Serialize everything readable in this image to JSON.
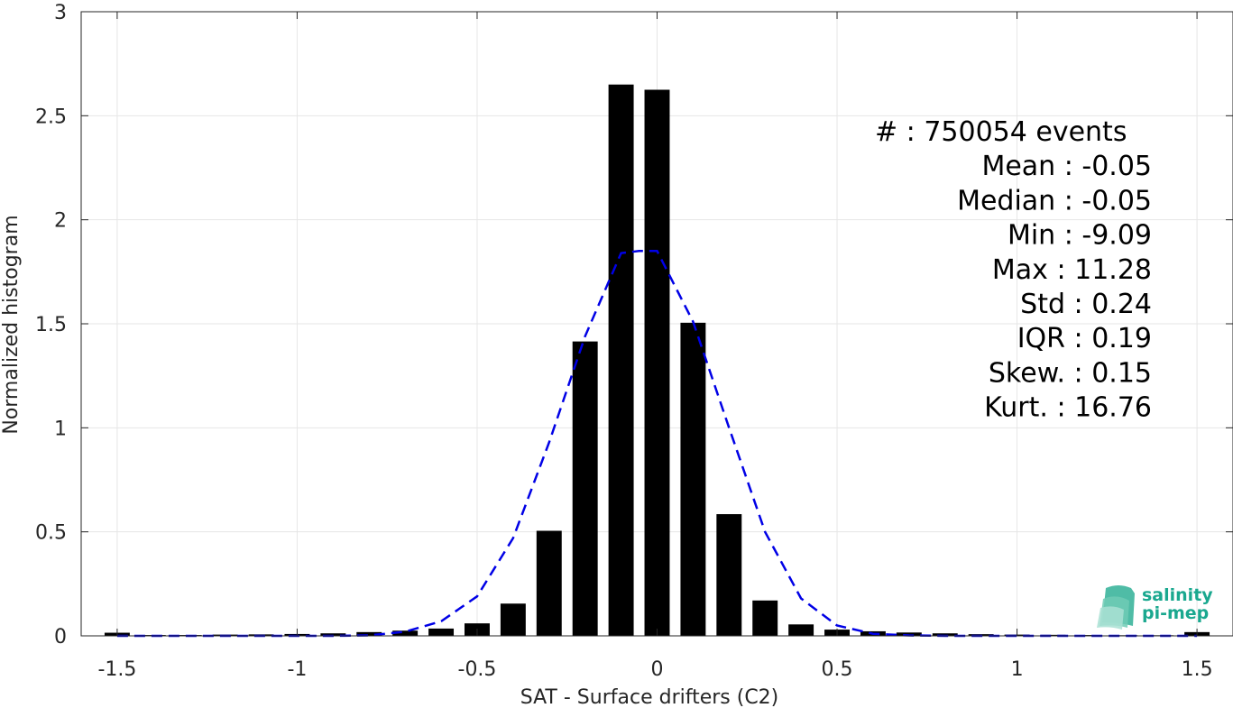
{
  "chart_data": {
    "type": "bar",
    "xlabel": "SAT - Surface drifters (C2)",
    "ylabel": "Normalized histogram",
    "xlim": [
      -1.6,
      1.6
    ],
    "ylim": [
      0,
      3
    ],
    "grid": true,
    "x_ticks": [
      -1.5,
      -1,
      -0.5,
      0,
      0.5,
      1,
      1.5
    ],
    "x_tick_labels": [
      "-1.5",
      "-1",
      "-0.5",
      "0",
      "0.5",
      "1",
      "1.5"
    ],
    "y_ticks": [
      0,
      0.5,
      1,
      1.5,
      2,
      2.5,
      3
    ],
    "y_tick_labels": [
      "0",
      "0.5",
      "1",
      "1.5",
      "2",
      "2.5",
      "3"
    ],
    "bar_width": 0.07,
    "bar_color": "#000000",
    "bars": {
      "x": [
        -1.5,
        -1.4,
        -1.3,
        -1.2,
        -1.1,
        -1.0,
        -0.9,
        -0.8,
        -0.7,
        -0.6,
        -0.5,
        -0.4,
        -0.3,
        -0.2,
        -0.1,
        0.0,
        0.1,
        0.2,
        0.3,
        0.4,
        0.5,
        0.6,
        0.7,
        0.8,
        0.9,
        1.0,
        1.1,
        1.2,
        1.3,
        1.4,
        1.5
      ],
      "values": [
        0.015,
        0.004,
        0.004,
        0.006,
        0.007,
        0.009,
        0.012,
        0.018,
        0.025,
        0.035,
        0.06,
        0.155,
        0.505,
        1.415,
        2.65,
        2.625,
        1.505,
        0.585,
        0.17,
        0.055,
        0.03,
        0.022,
        0.016,
        0.012,
        0.008,
        0.006,
        0.005,
        0.004,
        0.003,
        0.003,
        0.018
      ]
    },
    "fit": {
      "style": "dashed",
      "color": "#0000e6",
      "x": [
        -1.5,
        -1.4,
        -1.3,
        -1.2,
        -1.1,
        -1.0,
        -0.9,
        -0.8,
        -0.7,
        -0.6,
        -0.5,
        -0.4,
        -0.3,
        -0.2,
        -0.1,
        -0.05,
        0.0,
        0.1,
        0.2,
        0.3,
        0.4,
        0.5,
        0.6,
        0.7,
        0.8,
        0.9,
        1.0,
        1.1,
        1.2,
        1.3,
        1.4,
        1.5
      ],
      "y": [
        0.0,
        0.0,
        0.0,
        0.0,
        0.0,
        0.0,
        0.0,
        0.002,
        0.02,
        0.07,
        0.19,
        0.47,
        0.93,
        1.44,
        1.84,
        1.85,
        1.85,
        1.51,
        1.0,
        0.5,
        0.18,
        0.05,
        0.01,
        0.002,
        0.0,
        0.0,
        0.0,
        0.0,
        0.0,
        0.0,
        0.0,
        0.0
      ]
    },
    "stats": [
      {
        "label": "#  ",
        "value": "750054 events"
      },
      {
        "label": "Mean",
        "value": "-0.05"
      },
      {
        "label": "Median",
        "value": "-0.05"
      },
      {
        "label": "Min",
        "value": "-9.09"
      },
      {
        "label": "Max",
        "value": "11.28"
      },
      {
        "label": "Std",
        "value": "0.24"
      },
      {
        "label": "IQR",
        "value": "0.19"
      },
      {
        "label": "Skew.",
        "value": "0.15"
      },
      {
        "label": "Kurt.",
        "value": "16.76"
      }
    ]
  },
  "logo": {
    "line1": "salinity",
    "line2": "pi-mep",
    "color": "#1aa88f"
  }
}
